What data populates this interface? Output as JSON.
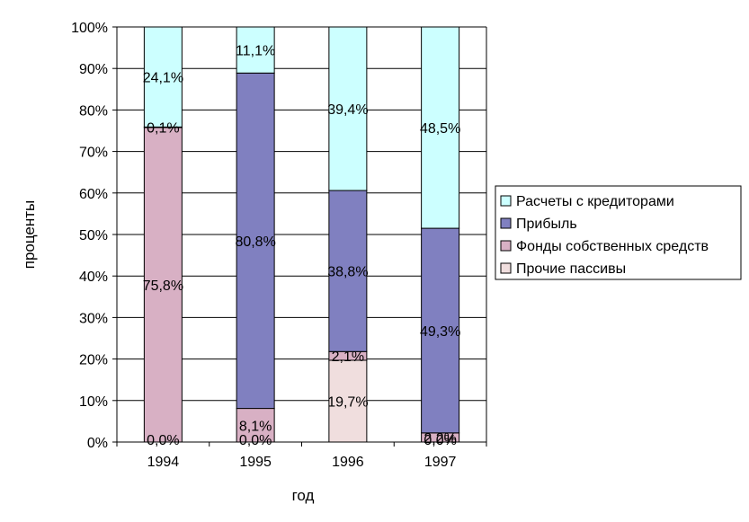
{
  "chart_data": {
    "type": "stacked-bar-100",
    "categories": [
      "1994",
      "1995",
      "1996",
      "1997"
    ],
    "series": [
      {
        "name": "Прочие пассивы",
        "color": "#f0dede",
        "values": [
          0.0,
          0.0,
          19.7,
          0.0
        ],
        "labels": [
          "",
          "",
          "19,7%",
          ""
        ]
      },
      {
        "name": "Фонды собственных средств",
        "color": "#d8b0c4",
        "values": [
          75.8,
          8.1,
          2.1,
          2.2
        ],
        "labels": [
          "75,8%",
          "8,1%",
          "2,1%",
          "2,2%"
        ]
      },
      {
        "name": "Прибыль",
        "color": "#8080c0",
        "values": [
          0.1,
          80.8,
          38.8,
          49.3
        ],
        "labels": [
          "0,1%",
          "80,8%",
          "38,8%",
          "49,3%"
        ]
      },
      {
        "name": "Расчеты с кредиторами",
        "color": "#ccffff",
        "values": [
          24.1,
          11.1,
          39.4,
          48.5
        ],
        "labels": [
          "24,1%",
          "11,1%",
          "39,4%",
          "48,5%"
        ]
      }
    ],
    "zero_labels": [
      "0,0%",
      "0,0%",
      "",
      "0,0%"
    ],
    "xlabel": "год",
    "ylabel": "проценты",
    "ylim": [
      0,
      100
    ],
    "yticks": [
      "0%",
      "10%",
      "20%",
      "30%",
      "40%",
      "50%",
      "60%",
      "70%",
      "80%",
      "90%",
      "100%"
    ],
    "grid": true,
    "legend": [
      "Расчеты с кредиторами",
      "Прибыль",
      "Фонды собственных средств",
      "Прочие пассивы"
    ],
    "legend_colors": [
      "#ccffff",
      "#8080c0",
      "#d8b0c4",
      "#f0dede"
    ]
  }
}
